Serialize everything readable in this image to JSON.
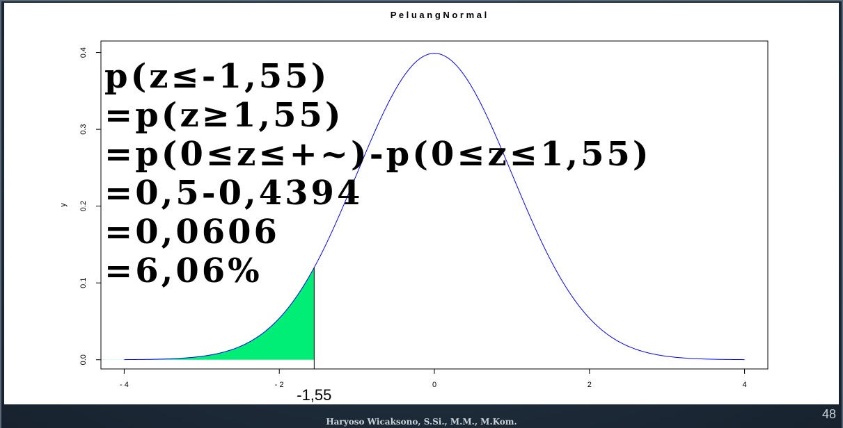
{
  "chart_data": {
    "type": "line",
    "title": "P e l u a n g   N o r m a l",
    "ylabel": "y",
    "xlabel": "",
    "xlim": [
      -4.3,
      4.3
    ],
    "ylim": [
      -0.012,
      0.415
    ],
    "x_ticks": [
      -4,
      -2,
      0,
      2,
      4
    ],
    "x_tick_labels": [
      "- 4",
      "- 2",
      "0",
      "2",
      "4"
    ],
    "y_ticks": [
      0.0,
      0.1,
      0.2,
      0.3,
      0.4
    ],
    "y_tick_labels": [
      "0.0",
      "0.1",
      "0.2",
      "0.3",
      "0.4"
    ],
    "curve": "standard normal density",
    "series": [
      {
        "x": [
          -4.0,
          -3.5,
          -3.0,
          -2.5,
          -2.0,
          -1.5,
          -1.0,
          -0.5,
          0.0,
          0.5,
          1.0,
          1.5,
          2.0,
          2.5,
          3.0,
          3.5,
          4.0
        ],
        "values": [
          0.0001,
          0.0009,
          0.0044,
          0.0175,
          0.054,
          0.1295,
          0.242,
          0.3521,
          0.3989,
          0.3521,
          0.242,
          0.1295,
          0.054,
          0.0175,
          0.0044,
          0.0009,
          0.0001
        ]
      }
    ],
    "shaded_region": {
      "from": -4.3,
      "to": -1.55,
      "color": "#00ee76"
    },
    "annotation": {
      "x": -1.55,
      "label": "-1,55"
    },
    "line_color": "#0000ff",
    "grid": false
  },
  "overlay_lines": [
    "p(z≤-1,55)",
    "=p(z≥1,55)",
    "=p(0≤z≤+~)-p(0≤z≤1,55)",
    "=0,5-0,4394",
    "=0,0606",
    "=6,06%"
  ],
  "footer": {
    "author": "Haryoso Wicaksono, S.Si., M.M., M.Kom.",
    "page_number": "48"
  }
}
